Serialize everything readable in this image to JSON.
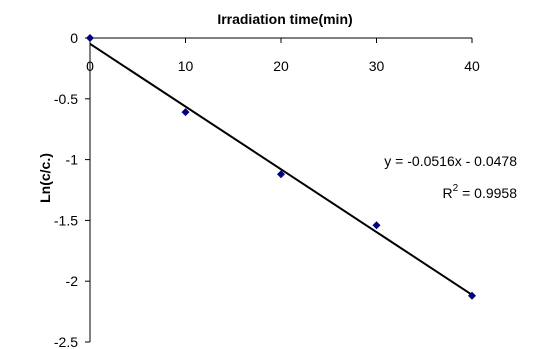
{
  "chart_data": {
    "type": "scatter",
    "xlabel": "Irradiation time(min)",
    "ylabel": "Ln(c/c.)",
    "xlim": [
      0,
      40
    ],
    "ylim": [
      -2.5,
      0
    ],
    "x_axis_position": "top",
    "x_ticks": [
      "0",
      "10",
      "20",
      "30",
      "40"
    ],
    "y_ticks": [
      "0",
      "-0.5",
      "-1",
      "-1.5",
      "-2",
      "-2.5"
    ],
    "grid": false,
    "series": [
      {
        "x": [
          0,
          10,
          20,
          30,
          40
        ],
        "y": [
          0,
          -0.61,
          -1.12,
          -1.54,
          -2.12
        ],
        "color": "#000080",
        "marker": "diamond"
      }
    ],
    "trendline": {
      "slope": -0.0516,
      "intercept": -0.0478,
      "color": "#000000"
    },
    "annotations": {
      "equation": "y = -0.0516x - 0.0478",
      "r2_prefix": "R",
      "r2_sup": "2",
      "r2_value": " = 0.9958"
    }
  }
}
